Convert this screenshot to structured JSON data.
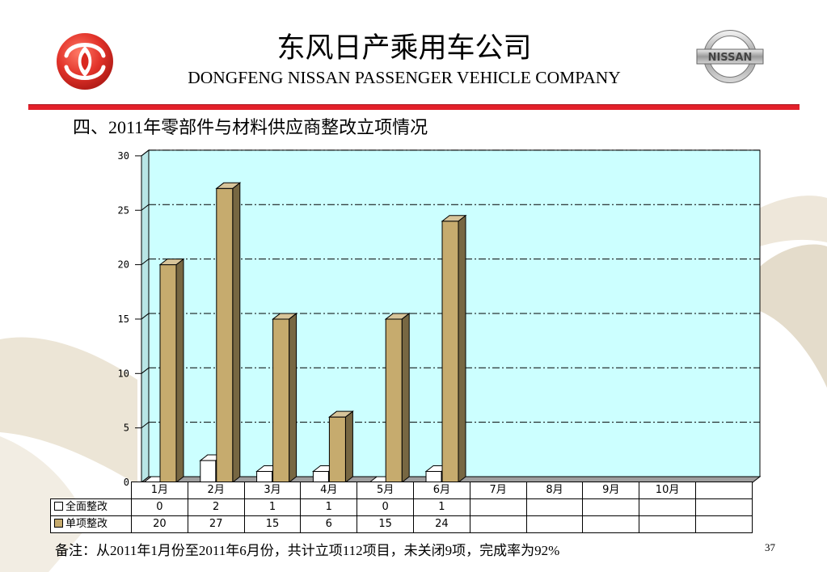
{
  "header": {
    "title_cn": "东风日产乘用车公司",
    "title_en": "DONGFENG NISSAN PASSENGER VEHICLE COMPANY",
    "nissan_logo_text": "NISSAN"
  },
  "slide": {
    "heading": "四、2011年零部件与材料供应商整改立项情况",
    "note": "备注：从2011年1月份至2011年6月份，共计立项112项目，未关闭9项，完成率为92%",
    "page_number": "37"
  },
  "icons": {
    "left_logo": "dongfeng-logo",
    "right_logo": "nissan-logo",
    "legend_marker": "square"
  },
  "colors": {
    "divider_red": "#e3202a",
    "plot_background": "#ccffff"
  },
  "chart_data": {
    "type": "bar",
    "variant": "3d-clustered-column",
    "categories": [
      "1月",
      "2月",
      "3月",
      "4月",
      "5月",
      "6月",
      "7月",
      "8月",
      "9月",
      "10月"
    ],
    "series": [
      {
        "name": "全面整改",
        "values": [
          0,
          2,
          1,
          1,
          0,
          1,
          null,
          null,
          null,
          null
        ],
        "color": "#ffffff"
      },
      {
        "name": "单项整改",
        "values": [
          20,
          27,
          15,
          6,
          15,
          24,
          null,
          null,
          null,
          null
        ],
        "color": "#c6ab6e"
      }
    ],
    "yticks": [
      0,
      5,
      10,
      15,
      20,
      25,
      30
    ],
    "ylim": [
      0,
      30
    ],
    "title": "",
    "xlabel": "",
    "ylabel": "",
    "grid": true,
    "gridline_style": "dash-dot",
    "legend": "data-table",
    "data_table": true
  }
}
